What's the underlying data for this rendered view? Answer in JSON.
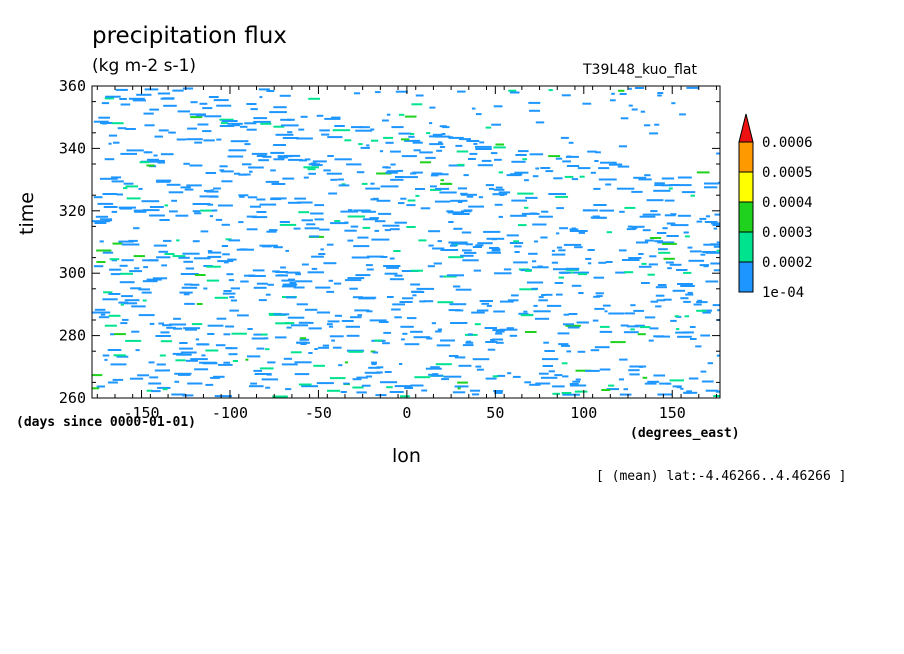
{
  "chart_data": {
    "type": "heatmap",
    "title": "precipitation flux",
    "units": "(kg m-2 s-1)",
    "run_name": "T39L48_kuo_flat",
    "xlabel": "lon",
    "ylabel": "time",
    "x_units": "(degrees_east)",
    "y_units": "(days since 0000-01-01)",
    "note": "[ (mean) lat:-4.46266..4.46266 ]",
    "xlim": [
      -178,
      177
    ],
    "ylim": [
      260,
      360
    ],
    "x_ticks": [
      -150,
      -100,
      -50,
      0,
      50,
      100,
      150
    ],
    "x_tick_labels": [
      "-150",
      "-100",
      "-50",
      "0",
      "50",
      "100",
      "150"
    ],
    "y_ticks": [
      260,
      280,
      300,
      320,
      340,
      360
    ],
    "y_tick_labels": [
      "260",
      "280",
      "300",
      "320",
      "340",
      "360"
    ],
    "colorbar": {
      "levels": [
        0.0001,
        0.0002,
        0.0003,
        0.0004,
        0.0005,
        0.0006
      ],
      "labels": [
        "1e-04",
        "0.0002",
        "0.0003",
        "0.0004",
        "0.0005",
        "0.0006"
      ],
      "colors": [
        "#1e96ff",
        "#00e38e",
        "#1ed21e",
        "#ffff00",
        "#ff9900",
        "#ee1111"
      ],
      "extend": "max"
    },
    "bands": [
      {
        "lon_start": -178,
        "time_start": 358,
        "slope": -0.095,
        "width": 5
      },
      {
        "lon_start": -178,
        "time_start": 344,
        "slope": -0.095,
        "width": 6
      },
      {
        "lon_start": -178,
        "time_start": 327,
        "slope": -0.085,
        "width": 6
      },
      {
        "lon_start": -178,
        "time_start": 310,
        "slope": -0.075,
        "width": 7
      },
      {
        "lon_start": -178,
        "time_start": 294,
        "slope": -0.08,
        "width": 8
      },
      {
        "lon_start": -178,
        "time_start": 280,
        "slope": -0.08,
        "width": 7
      },
      {
        "lon_start": -178,
        "time_start": 266,
        "slope": -0.07,
        "width": 6
      }
    ]
  }
}
